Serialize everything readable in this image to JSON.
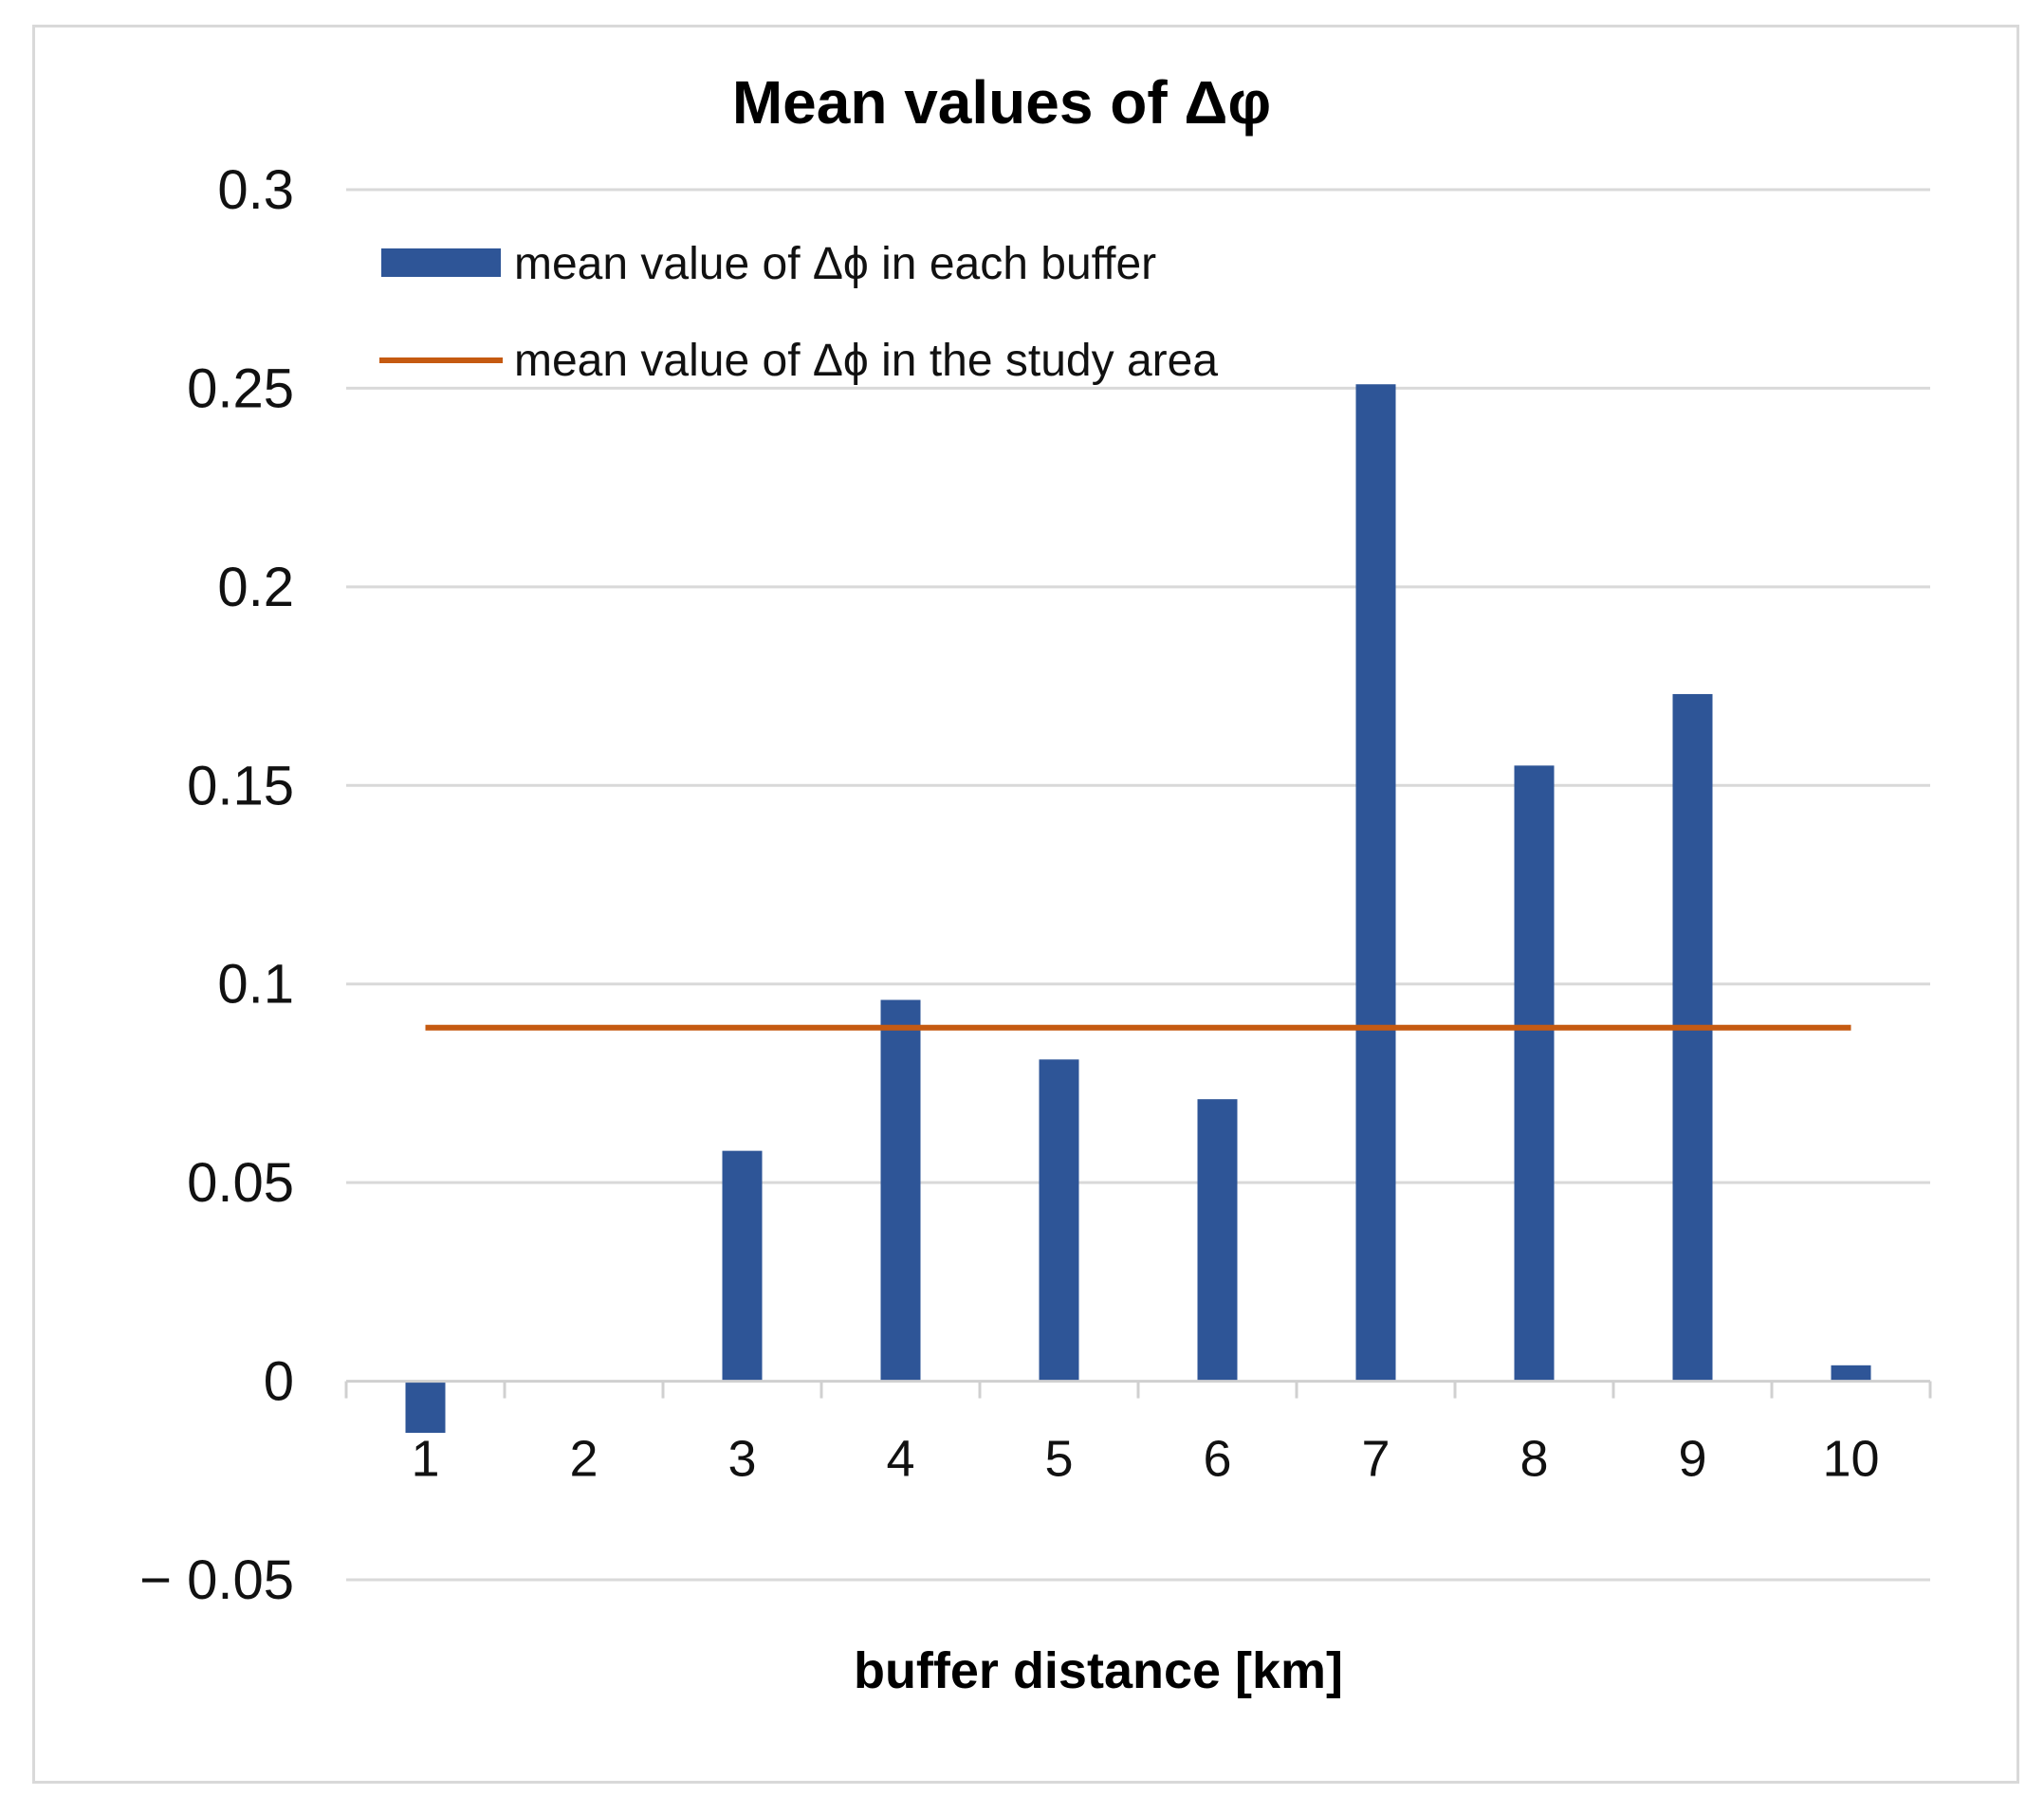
{
  "chart_data": {
    "type": "bar",
    "title": "Mean values of Δφ",
    "xlabel": "buffer distance [km]",
    "ylabel": "",
    "categories": [
      "1",
      "2",
      "3",
      "4",
      "5",
      "6",
      "7",
      "8",
      "9",
      "10"
    ],
    "series": [
      {
        "name": "mean value of Δϕ in each buffer",
        "kind": "bar",
        "color": "#2e5597",
        "values": [
          -0.013,
          0.0,
          0.058,
          0.096,
          0.081,
          0.071,
          0.251,
          0.155,
          0.173,
          0.004
        ]
      },
      {
        "name": "mean value of Δϕ in the study area",
        "kind": "line",
        "color": "#c55a11",
        "value": 0.089
      }
    ],
    "ylim": [
      -0.05,
      0.3
    ],
    "yticks": [
      0.3,
      0.25,
      0.2,
      0.15,
      0.1,
      0.05,
      0,
      -0.05
    ],
    "ytick_labels": [
      "0.3",
      "0.25",
      "0.2",
      "0.15",
      "0.1",
      "0.05",
      "0",
      "− 0.05"
    ],
    "grid": true,
    "legend": "top-left",
    "colors": {
      "grid": "#d9d9d9",
      "axis": "#d0d0d0"
    }
  }
}
